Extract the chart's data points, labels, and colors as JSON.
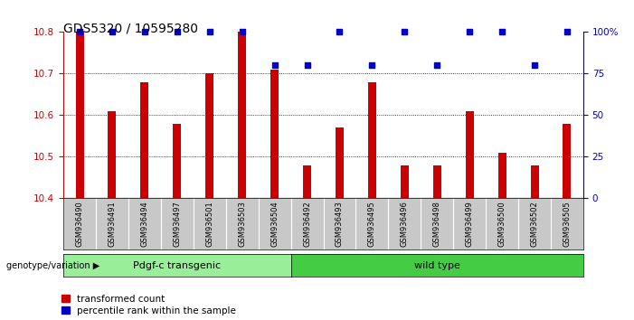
{
  "title": "GDS5320 / 10595280",
  "samples": [
    "GSM936490",
    "GSM936491",
    "GSM936494",
    "GSM936497",
    "GSM936501",
    "GSM936503",
    "GSM936504",
    "GSM936492",
    "GSM936493",
    "GSM936495",
    "GSM936496",
    "GSM936498",
    "GSM936499",
    "GSM936500",
    "GSM936502",
    "GSM936505"
  ],
  "red_values": [
    10.8,
    10.61,
    10.68,
    10.58,
    10.7,
    10.8,
    10.71,
    10.48,
    10.57,
    10.68,
    10.48,
    10.48,
    10.61,
    10.51,
    10.48,
    10.58
  ],
  "blue_values": [
    100,
    100,
    100,
    100,
    100,
    100,
    80,
    80,
    100,
    80,
    100,
    80,
    100,
    100,
    80,
    100
  ],
  "ylim_left": [
    10.4,
    10.8
  ],
  "ylim_right": [
    0,
    100
  ],
  "yticks_left": [
    10.4,
    10.5,
    10.6,
    10.7,
    10.8
  ],
  "yticks_right": [
    0,
    25,
    50,
    75,
    100
  ],
  "ytick_labels_right": [
    "0",
    "25",
    "50",
    "75",
    "100%"
  ],
  "group1_label": "Pdgf-c transgenic",
  "group2_label": "wild type",
  "group1_count": 7,
  "group2_count": 9,
  "genotype_label": "genotype/variation",
  "legend_red": "transformed count",
  "legend_blue": "percentile rank within the sample",
  "bar_color": "#cc0000",
  "dot_color": "#0000cc",
  "group1_color": "#99ee99",
  "group2_color": "#44cc44",
  "bg_color": "#ffffff",
  "tick_area_color": "#c8c8c8",
  "title_fontsize": 10,
  "axis_fontsize": 7.5,
  "label_fontsize": 7.5,
  "bar_width": 0.25
}
